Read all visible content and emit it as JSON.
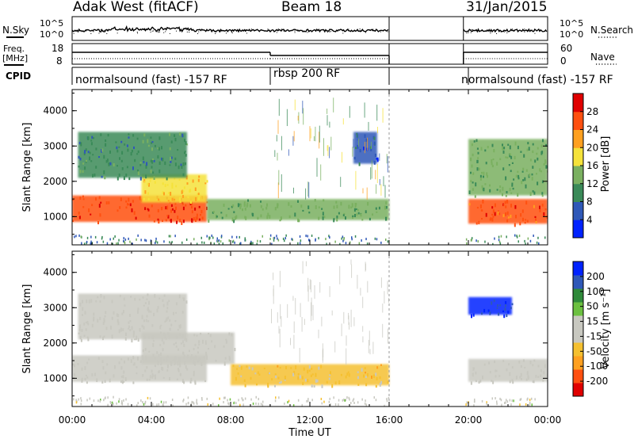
{
  "header": {
    "radar": "Adak West (fitACF)",
    "beam": "Beam 18",
    "date": "31/Jan/2015"
  },
  "side_labels": {
    "nsky": "N.Sky",
    "freq_line1": "Freq.",
    "freq_line2": "[MHz]",
    "cpid": "CPID",
    "nsearch": "N.Search",
    "nave": "Nave"
  },
  "params": {
    "nsky_ticks": [
      "10^5",
      "10^0"
    ],
    "nsearch_ticks": [
      "10^5",
      "10^0"
    ],
    "freq_ticks": [
      "18",
      "8"
    ],
    "nave_ticks": [
      "60",
      "0"
    ],
    "cpid_segments": [
      {
        "label": "normalsound (fast) -157 RF",
        "start_h": 0,
        "end_h": 10
      },
      {
        "label": "rbsp 200 RF",
        "start_h": 10,
        "end_h": 16
      },
      {
        "label": "normalsound (fast) -157 RF",
        "start_h": 20,
        "end_h": 24
      }
    ],
    "data_gaps_h": [
      [
        16,
        19.75
      ]
    ]
  },
  "chart_data": [
    {
      "type": "heatmap",
      "title": "",
      "xlabel": "Time UT",
      "ylabel": "Slant Range [km]",
      "xlim": [
        0,
        24
      ],
      "ylim": [
        200,
        4600
      ],
      "x_ticks": [
        "00:00",
        "04:00",
        "08:00",
        "12:00",
        "16:00",
        "20:00",
        "00:00"
      ],
      "y_ticks": [
        "1000",
        "2000",
        "3000",
        "4000"
      ],
      "colorbar": {
        "label": "Power [dB]",
        "range": [
          0,
          32
        ],
        "tick_labels": [
          "28",
          "24",
          "20",
          "16",
          "12",
          "8",
          "4"
        ],
        "colors": [
          "#0022ff",
          "#2f58b8",
          "#3a8a58",
          "#7ab060",
          "#f5e23a",
          "#ffa020",
          "#ff5010",
          "#e00000"
        ]
      },
      "regions": [
        {
          "t": [
            0,
            6.8
          ],
          "r": [
            850,
            1600
          ],
          "value": 27
        },
        {
          "t": [
            3.5,
            6.8
          ],
          "r": [
            1400,
            2200
          ],
          "value": 19
        },
        {
          "t": [
            0.3,
            5.8
          ],
          "r": [
            2100,
            3400
          ],
          "value": 10
        },
        {
          "t": [
            6.8,
            16
          ],
          "r": [
            900,
            1500
          ],
          "value": 13
        },
        {
          "t": [
            14.2,
            15.4
          ],
          "r": [
            2500,
            3400
          ],
          "value": 6
        },
        {
          "t": [
            20,
            24
          ],
          "r": [
            800,
            1500
          ],
          "value": 26
        },
        {
          "t": [
            20,
            24
          ],
          "r": [
            1600,
            3200
          ],
          "value": 12
        }
      ]
    },
    {
      "type": "heatmap",
      "title": "",
      "xlabel": "Time UT",
      "ylabel": "Slant Range [km]",
      "xlim": [
        0,
        24
      ],
      "ylim": [
        200,
        4600
      ],
      "x_ticks": [
        "00:00",
        "04:00",
        "08:00",
        "12:00",
        "16:00",
        "20:00",
        "00:00"
      ],
      "y_ticks": [
        "1000",
        "2000",
        "3000",
        "4000"
      ],
      "colorbar": {
        "label": "Velocity [m s⁻¹]",
        "range": [
          -250,
          250
        ],
        "tick_labels": [
          "200",
          "100",
          "50",
          "15",
          "-15",
          "-50",
          "-100",
          "-200"
        ],
        "colors": [
          "#e00000",
          "#ff5010",
          "#ffa020",
          "#f5c030",
          "#c8c8c0",
          "#c8c8c0",
          "#6cc040",
          "#2f8a3a",
          "#2f58b8",
          "#0022ff"
        ]
      },
      "regions": [
        {
          "t": [
            0,
            6.8
          ],
          "r": [
            900,
            1650
          ],
          "value": 0
        },
        {
          "t": [
            3.5,
            8.2
          ],
          "r": [
            1400,
            2300
          ],
          "value": 0
        },
        {
          "t": [
            0.3,
            5.8
          ],
          "r": [
            2100,
            3400
          ],
          "value": 0
        },
        {
          "t": [
            8.0,
            16
          ],
          "r": [
            800,
            1400
          ],
          "value": -60
        },
        {
          "t": [
            20,
            24
          ],
          "r": [
            900,
            1550
          ],
          "value": 0
        },
        {
          "t": [
            20,
            22.2
          ],
          "r": [
            2800,
            3300
          ],
          "value": 200
        }
      ]
    }
  ]
}
